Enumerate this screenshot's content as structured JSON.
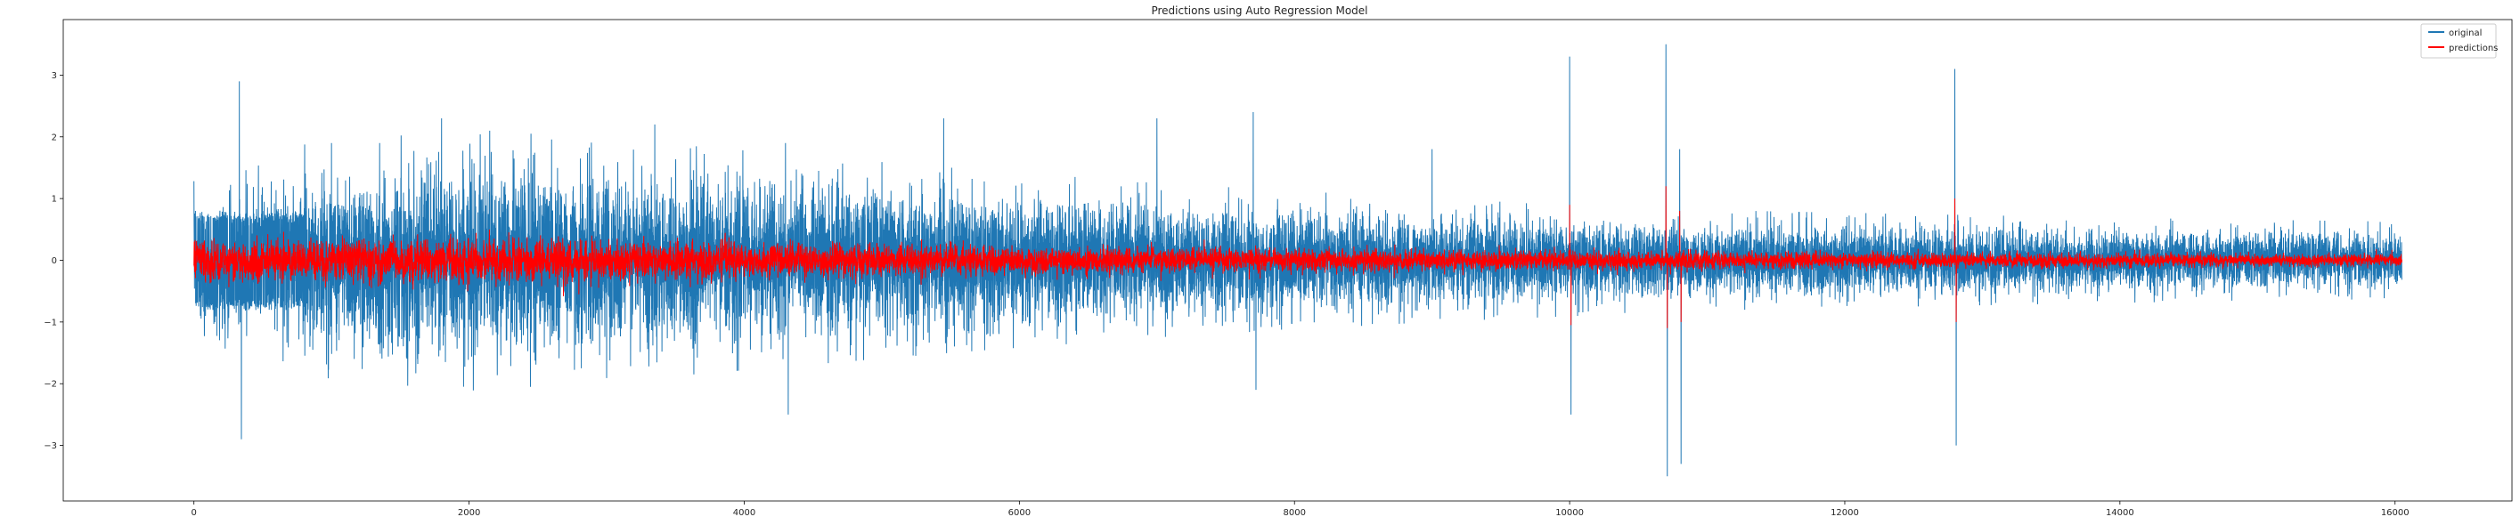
{
  "chart_data": {
    "type": "line",
    "title": "Predictions using Auto Regression Model",
    "xlabel": "",
    "ylabel": "",
    "xlim": [
      -950,
      16850
    ],
    "ylim": [
      -3.9,
      3.9
    ],
    "x_ticks": [
      0,
      2000,
      4000,
      6000,
      8000,
      10000,
      12000,
      14000,
      16000
    ],
    "x_tick_labels": [
      "0",
      "2000",
      "4000",
      "6000",
      "8000",
      "10000",
      "12000",
      "14000",
      "16000"
    ],
    "y_ticks": [
      -3,
      -2,
      -1,
      0,
      1,
      2,
      3
    ],
    "y_tick_labels": [
      "−3",
      "−2",
      "−1",
      "0",
      "1",
      "2",
      "3"
    ],
    "grid": false,
    "legend": {
      "placement": "top-right",
      "entries": [
        "original",
        "predictions"
      ]
    },
    "n_points": 16050,
    "series": [
      {
        "name": "original",
        "color": "#1f77b4",
        "amplitude_envelope": [
          [
            0,
            1.1
          ],
          [
            800,
            1.5
          ],
          [
            2000,
            1.7
          ],
          [
            3500,
            1.5
          ],
          [
            5500,
            1.2
          ],
          [
            7000,
            1.0
          ],
          [
            9000,
            0.8
          ],
          [
            11000,
            0.65
          ],
          [
            14000,
            0.55
          ],
          [
            16050,
            0.5
          ]
        ],
        "spikes": [
          [
            330,
            2.9
          ],
          [
            345,
            -2.9
          ],
          [
            1000,
            1.9
          ],
          [
            1350,
            1.9
          ],
          [
            1800,
            2.3
          ],
          [
            2150,
            2.1
          ],
          [
            2450,
            2.05
          ],
          [
            3350,
            2.2
          ],
          [
            4300,
            1.9
          ],
          [
            4320,
            -2.5
          ],
          [
            5450,
            2.3
          ],
          [
            7000,
            2.3
          ],
          [
            7700,
            2.4
          ],
          [
            7720,
            -2.1
          ],
          [
            9000,
            1.8
          ],
          [
            10000,
            3.3
          ],
          [
            10010,
            -2.5
          ],
          [
            10700,
            3.5
          ],
          [
            10710,
            -3.5
          ],
          [
            10800,
            1.8
          ],
          [
            10810,
            -3.3
          ],
          [
            12800,
            3.1
          ],
          [
            12810,
            -3.0
          ]
        ]
      },
      {
        "name": "predictions",
        "color": "#ff0000",
        "amplitude_envelope": [
          [
            0,
            0.5
          ],
          [
            2000,
            0.55
          ],
          [
            4000,
            0.45
          ],
          [
            6000,
            0.35
          ],
          [
            8000,
            0.3
          ],
          [
            10000,
            0.25
          ],
          [
            12000,
            0.2
          ],
          [
            14000,
            0.18
          ],
          [
            16050,
            0.15
          ]
        ],
        "spikes": [
          [
            10000,
            0.9
          ],
          [
            10010,
            -1.05
          ],
          [
            10700,
            1.2
          ],
          [
            10710,
            -1.1
          ],
          [
            10800,
            0.8
          ],
          [
            10810,
            -1.0
          ],
          [
            12800,
            1.0
          ],
          [
            12810,
            -1.0
          ]
        ]
      }
    ]
  }
}
